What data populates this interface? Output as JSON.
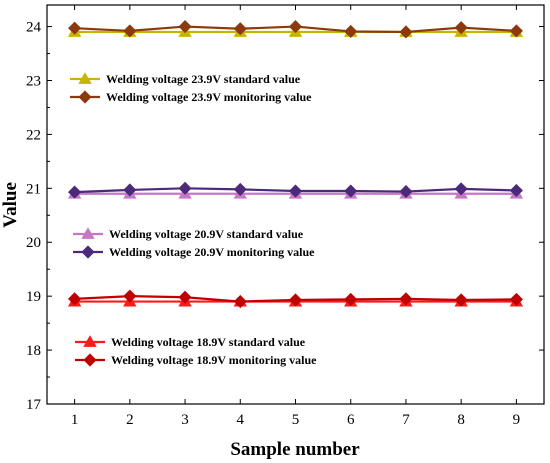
{
  "chart_data": {
    "type": "line",
    "xlabel": "Sample number",
    "ylabel": "Value",
    "x": [
      1,
      2,
      3,
      4,
      5,
      6,
      7,
      8,
      9
    ],
    "xlim": [
      0.5,
      9.5
    ],
    "ylim": [
      17,
      24.4
    ],
    "yticks": [
      17,
      18,
      19,
      20,
      21,
      22,
      23,
      24
    ],
    "grid": false,
    "series": [
      {
        "name": "Welding voltage 23.9V standard value",
        "values": [
          23.9,
          23.9,
          23.9,
          23.9,
          23.9,
          23.9,
          23.9,
          23.9,
          23.9
        ],
        "color": "#c8b400",
        "marker": "triangle"
      },
      {
        "name": "Welding voltage 23.9V monitoring value",
        "values": [
          23.97,
          23.92,
          24.0,
          23.96,
          24.0,
          23.91,
          23.9,
          23.98,
          23.92
        ],
        "color": "#8b3a0e",
        "marker": "diamond"
      },
      {
        "name": "Welding voltage 20.9V standard value",
        "values": [
          20.9,
          20.9,
          20.9,
          20.9,
          20.9,
          20.9,
          20.9,
          20.9,
          20.9
        ],
        "color": "#c678c6",
        "marker": "triangle"
      },
      {
        "name": "Welding voltage 20.9V monitoring value",
        "values": [
          20.93,
          20.97,
          21.0,
          20.98,
          20.95,
          20.95,
          20.94,
          20.99,
          20.96
        ],
        "color": "#4b2a7a",
        "marker": "diamond"
      },
      {
        "name": "Welding voltage 18.9V standard value",
        "values": [
          18.9,
          18.9,
          18.9,
          18.9,
          18.9,
          18.9,
          18.9,
          18.9,
          18.9
        ],
        "color": "#ff1a1a",
        "marker": "triangle"
      },
      {
        "name": "Welding voltage 18.9V monitoring value",
        "values": [
          18.95,
          19.0,
          18.98,
          18.9,
          18.93,
          18.94,
          18.95,
          18.93,
          18.94
        ],
        "color": "#c00000",
        "marker": "diamond"
      }
    ],
    "legends": [
      {
        "series": [
          0,
          1
        ],
        "anchor_value": 23.9
      },
      {
        "series": [
          2,
          3
        ],
        "anchor_value": 20.9
      },
      {
        "series": [
          4,
          5
        ],
        "anchor_value": 18.9
      }
    ]
  }
}
